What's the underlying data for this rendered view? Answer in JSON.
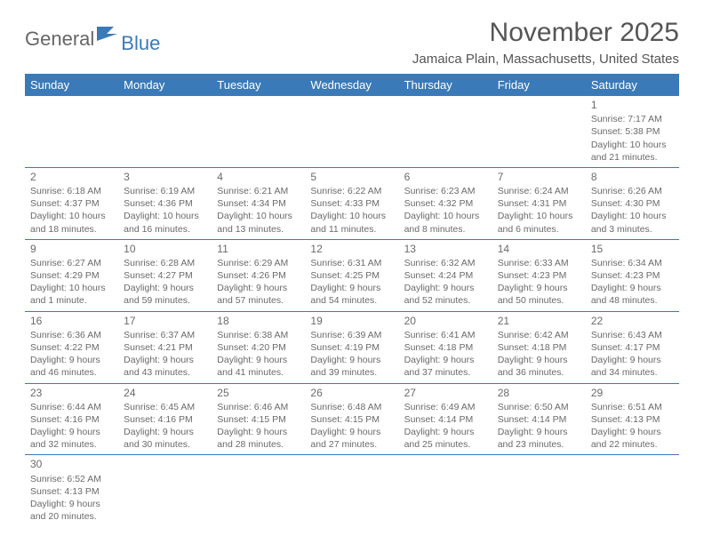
{
  "logo": {
    "general": "General",
    "blue": "Blue"
  },
  "title": {
    "monthYear": "November 2025",
    "location": "Jamaica Plain, Massachusetts, United States"
  },
  "dayHeaders": [
    "Sunday",
    "Monday",
    "Tuesday",
    "Wednesday",
    "Thursday",
    "Friday",
    "Saturday"
  ],
  "colors": {
    "headerBg": "#3b7ab8",
    "headerText": "#ffffff",
    "bodyText": "#6a6a6a",
    "titleText": "#555555",
    "borderColor": "#3b7ab8",
    "logoGray": "#666666",
    "logoBlue": "#3b7ab8"
  },
  "weeks": [
    [
      null,
      null,
      null,
      null,
      null,
      null,
      {
        "num": "1",
        "sunrise": "Sunrise: 7:17 AM",
        "sunset": "Sunset: 5:38 PM",
        "daylight1": "Daylight: 10 hours",
        "daylight2": "and 21 minutes."
      }
    ],
    [
      {
        "num": "2",
        "sunrise": "Sunrise: 6:18 AM",
        "sunset": "Sunset: 4:37 PM",
        "daylight1": "Daylight: 10 hours",
        "daylight2": "and 18 minutes."
      },
      {
        "num": "3",
        "sunrise": "Sunrise: 6:19 AM",
        "sunset": "Sunset: 4:36 PM",
        "daylight1": "Daylight: 10 hours",
        "daylight2": "and 16 minutes."
      },
      {
        "num": "4",
        "sunrise": "Sunrise: 6:21 AM",
        "sunset": "Sunset: 4:34 PM",
        "daylight1": "Daylight: 10 hours",
        "daylight2": "and 13 minutes."
      },
      {
        "num": "5",
        "sunrise": "Sunrise: 6:22 AM",
        "sunset": "Sunset: 4:33 PM",
        "daylight1": "Daylight: 10 hours",
        "daylight2": "and 11 minutes."
      },
      {
        "num": "6",
        "sunrise": "Sunrise: 6:23 AM",
        "sunset": "Sunset: 4:32 PM",
        "daylight1": "Daylight: 10 hours",
        "daylight2": "and 8 minutes."
      },
      {
        "num": "7",
        "sunrise": "Sunrise: 6:24 AM",
        "sunset": "Sunset: 4:31 PM",
        "daylight1": "Daylight: 10 hours",
        "daylight2": "and 6 minutes."
      },
      {
        "num": "8",
        "sunrise": "Sunrise: 6:26 AM",
        "sunset": "Sunset: 4:30 PM",
        "daylight1": "Daylight: 10 hours",
        "daylight2": "and 3 minutes."
      }
    ],
    [
      {
        "num": "9",
        "sunrise": "Sunrise: 6:27 AM",
        "sunset": "Sunset: 4:29 PM",
        "daylight1": "Daylight: 10 hours",
        "daylight2": "and 1 minute."
      },
      {
        "num": "10",
        "sunrise": "Sunrise: 6:28 AM",
        "sunset": "Sunset: 4:27 PM",
        "daylight1": "Daylight: 9 hours",
        "daylight2": "and 59 minutes."
      },
      {
        "num": "11",
        "sunrise": "Sunrise: 6:29 AM",
        "sunset": "Sunset: 4:26 PM",
        "daylight1": "Daylight: 9 hours",
        "daylight2": "and 57 minutes."
      },
      {
        "num": "12",
        "sunrise": "Sunrise: 6:31 AM",
        "sunset": "Sunset: 4:25 PM",
        "daylight1": "Daylight: 9 hours",
        "daylight2": "and 54 minutes."
      },
      {
        "num": "13",
        "sunrise": "Sunrise: 6:32 AM",
        "sunset": "Sunset: 4:24 PM",
        "daylight1": "Daylight: 9 hours",
        "daylight2": "and 52 minutes."
      },
      {
        "num": "14",
        "sunrise": "Sunrise: 6:33 AM",
        "sunset": "Sunset: 4:23 PM",
        "daylight1": "Daylight: 9 hours",
        "daylight2": "and 50 minutes."
      },
      {
        "num": "15",
        "sunrise": "Sunrise: 6:34 AM",
        "sunset": "Sunset: 4:23 PM",
        "daylight1": "Daylight: 9 hours",
        "daylight2": "and 48 minutes."
      }
    ],
    [
      {
        "num": "16",
        "sunrise": "Sunrise: 6:36 AM",
        "sunset": "Sunset: 4:22 PM",
        "daylight1": "Daylight: 9 hours",
        "daylight2": "and 46 minutes."
      },
      {
        "num": "17",
        "sunrise": "Sunrise: 6:37 AM",
        "sunset": "Sunset: 4:21 PM",
        "daylight1": "Daylight: 9 hours",
        "daylight2": "and 43 minutes."
      },
      {
        "num": "18",
        "sunrise": "Sunrise: 6:38 AM",
        "sunset": "Sunset: 4:20 PM",
        "daylight1": "Daylight: 9 hours",
        "daylight2": "and 41 minutes."
      },
      {
        "num": "19",
        "sunrise": "Sunrise: 6:39 AM",
        "sunset": "Sunset: 4:19 PM",
        "daylight1": "Daylight: 9 hours",
        "daylight2": "and 39 minutes."
      },
      {
        "num": "20",
        "sunrise": "Sunrise: 6:41 AM",
        "sunset": "Sunset: 4:18 PM",
        "daylight1": "Daylight: 9 hours",
        "daylight2": "and 37 minutes."
      },
      {
        "num": "21",
        "sunrise": "Sunrise: 6:42 AM",
        "sunset": "Sunset: 4:18 PM",
        "daylight1": "Daylight: 9 hours",
        "daylight2": "and 36 minutes."
      },
      {
        "num": "22",
        "sunrise": "Sunrise: 6:43 AM",
        "sunset": "Sunset: 4:17 PM",
        "daylight1": "Daylight: 9 hours",
        "daylight2": "and 34 minutes."
      }
    ],
    [
      {
        "num": "23",
        "sunrise": "Sunrise: 6:44 AM",
        "sunset": "Sunset: 4:16 PM",
        "daylight1": "Daylight: 9 hours",
        "daylight2": "and 32 minutes."
      },
      {
        "num": "24",
        "sunrise": "Sunrise: 6:45 AM",
        "sunset": "Sunset: 4:16 PM",
        "daylight1": "Daylight: 9 hours",
        "daylight2": "and 30 minutes."
      },
      {
        "num": "25",
        "sunrise": "Sunrise: 6:46 AM",
        "sunset": "Sunset: 4:15 PM",
        "daylight1": "Daylight: 9 hours",
        "daylight2": "and 28 minutes."
      },
      {
        "num": "26",
        "sunrise": "Sunrise: 6:48 AM",
        "sunset": "Sunset: 4:15 PM",
        "daylight1": "Daylight: 9 hours",
        "daylight2": "and 27 minutes."
      },
      {
        "num": "27",
        "sunrise": "Sunrise: 6:49 AM",
        "sunset": "Sunset: 4:14 PM",
        "daylight1": "Daylight: 9 hours",
        "daylight2": "and 25 minutes."
      },
      {
        "num": "28",
        "sunrise": "Sunrise: 6:50 AM",
        "sunset": "Sunset: 4:14 PM",
        "daylight1": "Daylight: 9 hours",
        "daylight2": "and 23 minutes."
      },
      {
        "num": "29",
        "sunrise": "Sunrise: 6:51 AM",
        "sunset": "Sunset: 4:13 PM",
        "daylight1": "Daylight: 9 hours",
        "daylight2": "and 22 minutes."
      }
    ],
    [
      {
        "num": "30",
        "sunrise": "Sunrise: 6:52 AM",
        "sunset": "Sunset: 4:13 PM",
        "daylight1": "Daylight: 9 hours",
        "daylight2": "and 20 minutes."
      },
      null,
      null,
      null,
      null,
      null,
      null
    ]
  ]
}
